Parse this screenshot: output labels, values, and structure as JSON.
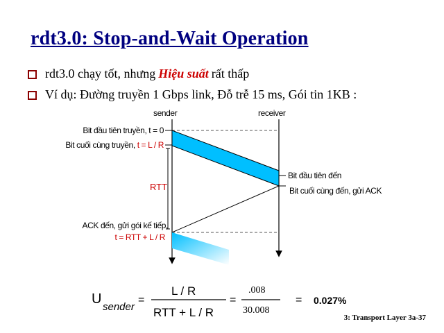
{
  "title": "rdt3.0: Stop-and-Wait Operation",
  "bullets": {
    "b1_pre": "rdt3.0 chạy tốt, nhưng ",
    "b1_hl": "Hiệu suất",
    "b1_post": " rất thấp",
    "b2": "Ví dụ: Đường truyền 1 Gbps link, Đỗ trễ 15 ms, Gói tin 1KB :"
  },
  "diagram": {
    "sender": "sender",
    "receiver": "receiver",
    "first_bit_sent": "Bit đầu tiên truyền, t = 0",
    "last_bit_sent": "Bit cuối cùng truyền, ",
    "last_bit_sent_t": "t = L / R",
    "first_bit_arrives": "Bit đầu tiên đến",
    "last_bit_arrives": "Bit cuối cùng đến, gửi ACK",
    "rtt": "RTT",
    "ack_arrives": "ACK đến, gửi gói kế tiếp,",
    "ack_t": "t = RTT + L / R"
  },
  "formula": {
    "u": "U",
    "sub": "sender",
    "eq1": "=",
    "num": "L / R",
    "den": "RTT + L / R",
    "eq2": "=",
    "num2": ".008",
    "den2": "30.008",
    "eq3": "=",
    "result": "0.027%"
  },
  "footer": "3: Transport Layer   3a-37",
  "colors": {
    "title": "#000080",
    "highlight": "#cc0000",
    "packet": "#00bfff"
  }
}
